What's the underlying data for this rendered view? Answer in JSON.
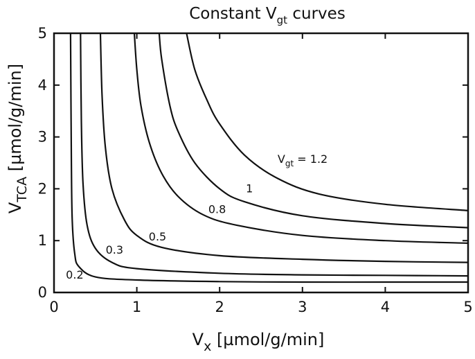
{
  "chart_data": {
    "type": "line",
    "title": "Constant ",
    "title_symbol": "V",
    "title_subscript": "gt",
    "title_suffix": " curves",
    "xlabel": "V",
    "xlabel_subscript": "x",
    "xlabel_units": " [µmol/g/min]",
    "ylabel": "V",
    "ylabel_subscript": "TCA",
    "ylabel_units": " [µmol/g/min]",
    "xlim": [
      0,
      5
    ],
    "ylim": [
      0,
      5
    ],
    "xticks": [
      "0",
      "1",
      "2",
      "3",
      "4",
      "5"
    ],
    "yticks": [
      "0",
      "1",
      "2",
      "3",
      "4",
      "5"
    ],
    "grid": false,
    "legend": "none",
    "series": [
      {
        "label": "0.2",
        "x": [
          0.2,
          0.21,
          0.22,
          0.25,
          0.3,
          0.5,
          1,
          2,
          3,
          4,
          5
        ],
        "y": [
          5,
          2.5,
          1.4,
          0.75,
          0.5,
          0.3,
          0.24,
          0.21,
          0.2,
          0.2,
          0.2
        ]
      },
      {
        "label": "0.3",
        "x": [
          0.32,
          0.33,
          0.35,
          0.4,
          0.5,
          0.7,
          1,
          2,
          3,
          4,
          5
        ],
        "y": [
          5,
          3.3,
          2.1,
          1.3,
          0.85,
          0.58,
          0.46,
          0.37,
          0.34,
          0.33,
          0.32
        ]
      },
      {
        "label": "0.5",
        "x": [
          0.56,
          0.58,
          0.62,
          0.7,
          0.85,
          1.0,
          1.3,
          2,
          3,
          4,
          5
        ],
        "y": [
          5,
          3.8,
          2.8,
          2.0,
          1.4,
          1.1,
          0.87,
          0.71,
          0.64,
          0.6,
          0.58
        ]
      },
      {
        "label": "0.8",
        "x": [
          0.97,
          1.0,
          1.05,
          1.15,
          1.3,
          1.5,
          1.8,
          2.2,
          3,
          4,
          5
        ],
        "y": [
          5,
          4.3,
          3.6,
          2.9,
          2.3,
          1.85,
          1.5,
          1.3,
          1.1,
          1.0,
          0.95
        ]
      },
      {
        "label": "1",
        "x": [
          1.27,
          1.3,
          1.4,
          1.5,
          1.7,
          2.0,
          2.3,
          3,
          4,
          5
        ],
        "y": [
          5,
          4.5,
          3.6,
          3.1,
          2.5,
          2.0,
          1.75,
          1.48,
          1.33,
          1.25
        ]
      },
      {
        "label": "V",
        "label_subscript": "gt",
        "label_suffix": " = 1.2",
        "x": [
          1.6,
          1.7,
          1.85,
          2.0,
          2.3,
          2.7,
          3.2,
          4,
          5
        ],
        "y": [
          5,
          4.3,
          3.7,
          3.25,
          2.65,
          2.2,
          1.9,
          1.7,
          1.58
        ]
      }
    ],
    "annotations": [
      {
        "series": 0,
        "text": "0.2",
        "x": 0.25,
        "y": 0.27
      },
      {
        "series": 1,
        "text": "0.3",
        "x": 0.73,
        "y": 0.75
      },
      {
        "series": 2,
        "text": "0.5",
        "x": 1.25,
        "y": 1.0
      },
      {
        "series": 3,
        "text": "0.8",
        "x": 1.97,
        "y": 1.53
      },
      {
        "series": 4,
        "text": "1",
        "x": 2.36,
        "y": 1.93
      },
      {
        "series": 5,
        "text": "V",
        "sub": "gt",
        "suffix": " = 1.2",
        "x": 2.7,
        "y": 2.5
      }
    ]
  }
}
